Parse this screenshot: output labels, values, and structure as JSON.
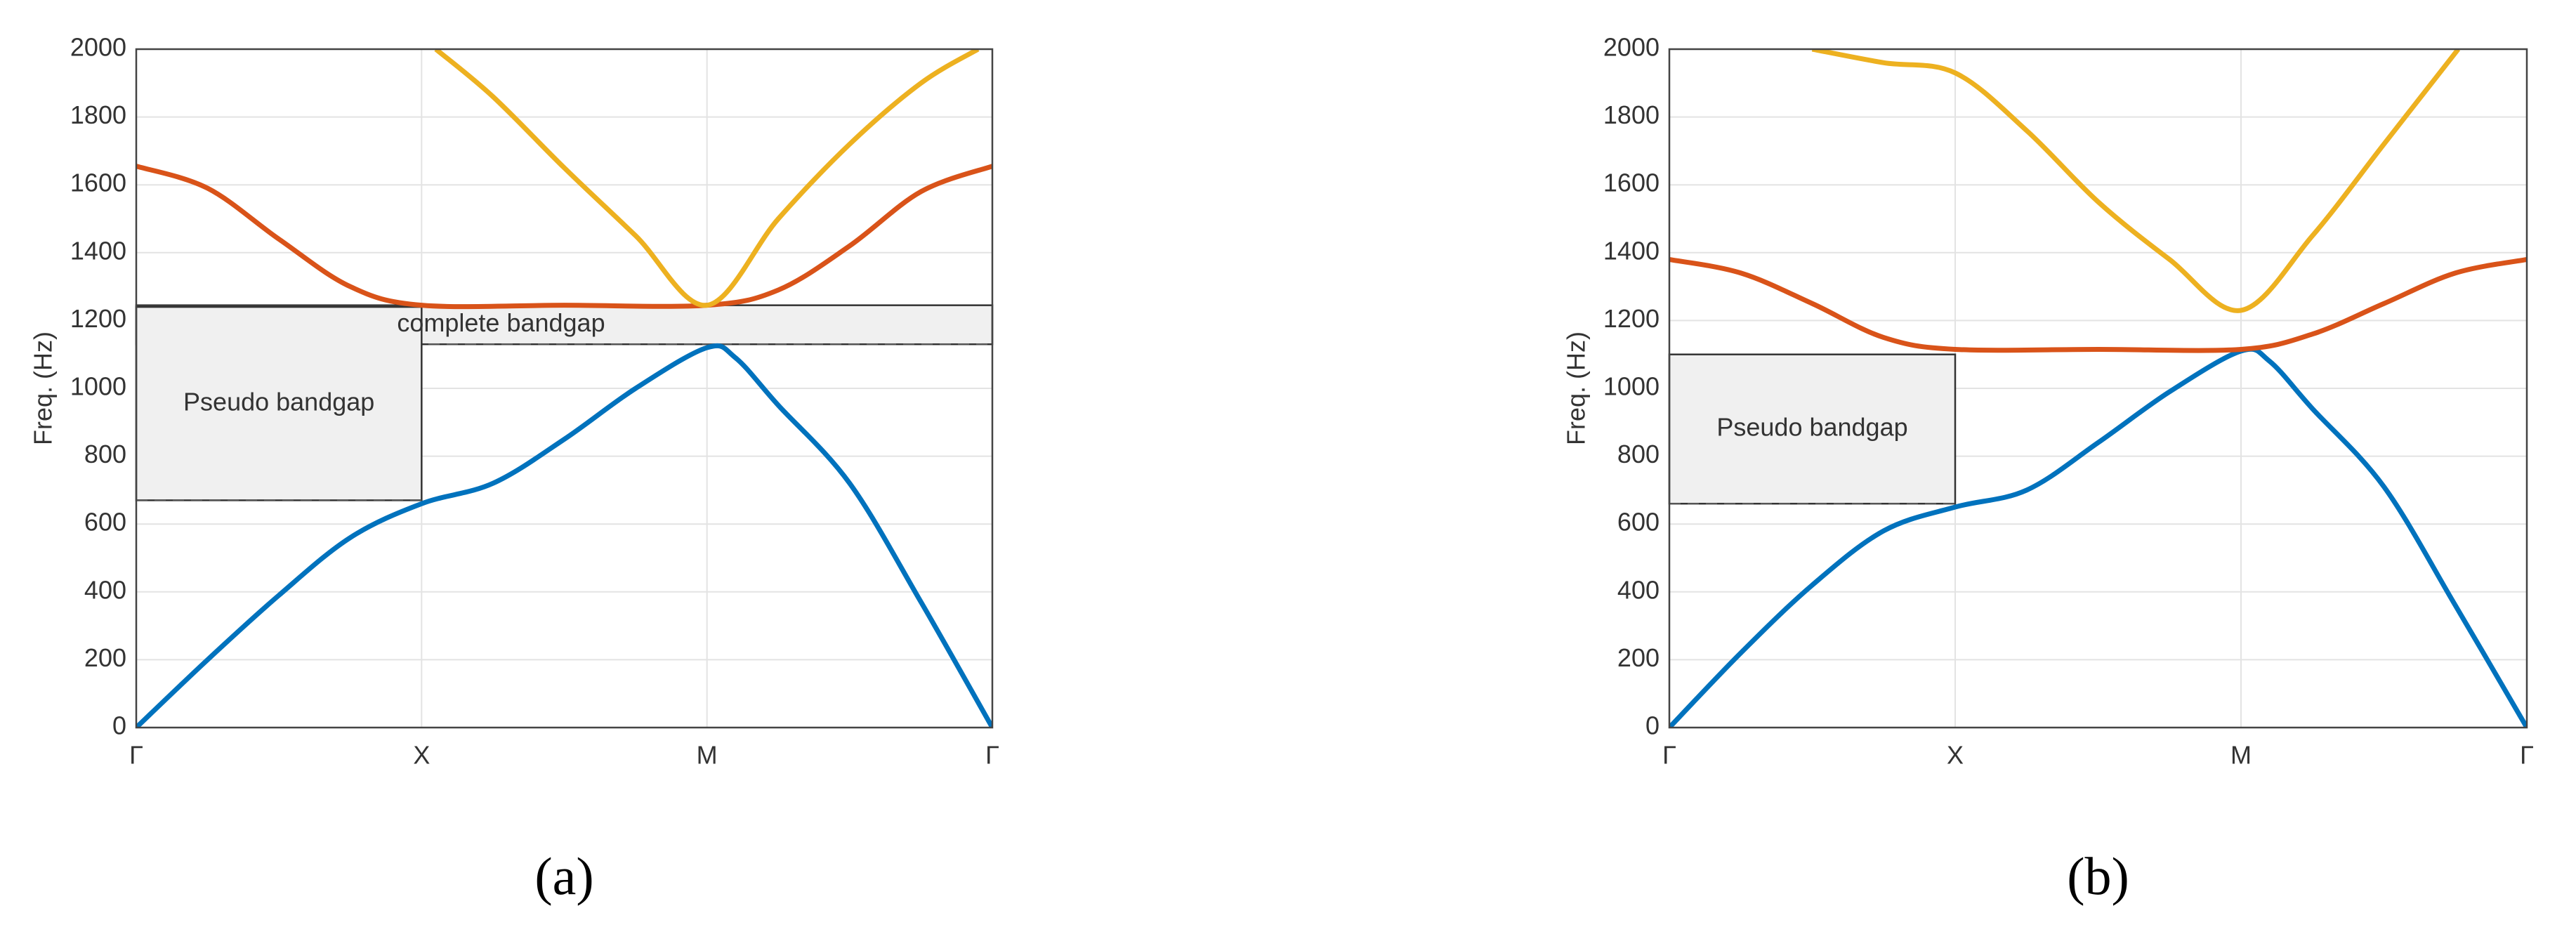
{
  "chart_data": [
    {
      "type": "line",
      "ylabel": "Freq. (Hz)",
      "caption": "(a)",
      "grid": true,
      "xlim": [
        0,
        3
      ],
      "ylim": [
        0,
        2000
      ],
      "xticks": [
        {
          "value": 0,
          "label": "Γ"
        },
        {
          "value": 1,
          "label": "X"
        },
        {
          "value": 2,
          "label": "M"
        },
        {
          "value": 3,
          "label": "Γ"
        }
      ],
      "yticks": [
        0,
        200,
        400,
        600,
        800,
        1000,
        1200,
        1400,
        1600,
        1800,
        2000
      ],
      "series": [
        {
          "color": "#0072BD",
          "x": [
            0,
            0.25,
            0.5,
            0.75,
            1,
            1.25,
            1.5,
            1.75,
            2,
            2.1,
            2.25,
            2.5,
            2.75,
            3
          ],
          "values": [
            0,
            200,
            390,
            560,
            660,
            720,
            850,
            1000,
            1120,
            1090,
            950,
            720,
            370,
            0
          ]
        },
        {
          "color": "#D95319",
          "x": [
            0,
            0.25,
            0.5,
            0.75,
            1,
            1.5,
            2,
            2.25,
            2.5,
            2.75,
            3
          ],
          "values": [
            1655,
            1590,
            1440,
            1300,
            1245,
            1245,
            1245,
            1290,
            1420,
            1580,
            1655
          ]
        },
        {
          "color": "#EDB120",
          "x": [
            1.05,
            1.25,
            1.5,
            1.75,
            2,
            2.25,
            2.5,
            2.75,
            2.95
          ],
          "values": [
            2000,
            1860,
            1650,
            1450,
            1245,
            1500,
            1720,
            1900,
            2000
          ]
        }
      ],
      "annotations": [
        {
          "text": "complete bandgap",
          "x": [
            0,
            3
          ],
          "y": [
            1130,
            1245
          ]
        },
        {
          "text": "Pseudo bandgap",
          "x": [
            0,
            1
          ],
          "y": [
            670,
            1240
          ]
        }
      ]
    },
    {
      "type": "line",
      "ylabel": "Freq. (Hz)",
      "caption": "(b)",
      "grid": true,
      "xlim": [
        0,
        3
      ],
      "ylim": [
        0,
        2000
      ],
      "xticks": [
        {
          "value": 0,
          "label": "Γ"
        },
        {
          "value": 1,
          "label": "X"
        },
        {
          "value": 2,
          "label": "M"
        },
        {
          "value": 3,
          "label": "Γ"
        }
      ],
      "yticks": [
        0,
        200,
        400,
        600,
        800,
        1000,
        1200,
        1400,
        1600,
        1800,
        2000
      ],
      "series": [
        {
          "color": "#0072BD",
          "x": [
            0,
            0.25,
            0.5,
            0.75,
            1,
            1.25,
            1.5,
            1.75,
            2,
            2.1,
            2.25,
            2.5,
            2.75,
            3
          ],
          "values": [
            0,
            220,
            420,
            580,
            650,
            700,
            840,
            990,
            1110,
            1080,
            940,
            710,
            360,
            0
          ]
        },
        {
          "color": "#D95319",
          "x": [
            0,
            0.25,
            0.5,
            0.75,
            1,
            1.5,
            2,
            2.25,
            2.5,
            2.75,
            3
          ],
          "values": [
            1380,
            1340,
            1250,
            1150,
            1115,
            1115,
            1115,
            1160,
            1250,
            1340,
            1380
          ]
        },
        {
          "color": "#EDB120",
          "x": [
            0.5,
            0.75,
            1,
            1.25,
            1.5,
            1.75,
            2,
            2.25,
            2.5,
            2.76
          ],
          "values": [
            2000,
            1960,
            1930,
            1760,
            1550,
            1380,
            1230,
            1450,
            1720,
            2000
          ]
        }
      ],
      "annotations": [
        {
          "text": "Pseudo bandgap",
          "x": [
            0,
            1
          ],
          "y": [
            660,
            1100
          ]
        }
      ]
    }
  ]
}
